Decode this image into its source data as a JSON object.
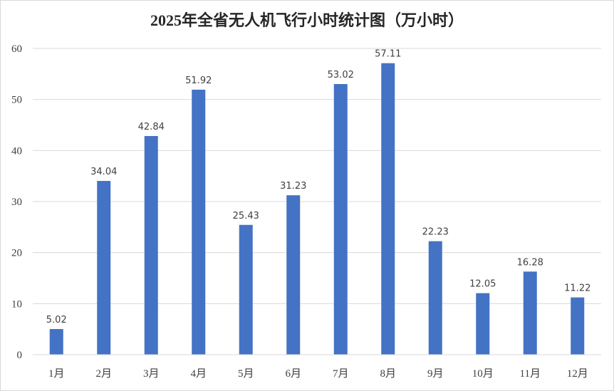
{
  "title": "2025年全省无人机飞行小时统计图（万小时）",
  "chart_data": {
    "type": "bar",
    "title": "2025年全省无人机飞行小时统计图（万小时）",
    "xlabel": "",
    "ylabel": "",
    "categories": [
      "1月",
      "2月",
      "3月",
      "4月",
      "5月",
      "6月",
      "7月",
      "8月",
      "9月",
      "10月",
      "11月",
      "12月"
    ],
    "values": [
      5.02,
      34.04,
      42.84,
      51.92,
      25.43,
      31.23,
      53.02,
      57.11,
      22.23,
      12.05,
      16.28,
      11.22
    ],
    "data_labels": [
      "5.02",
      "34.04",
      "42.84",
      "51.92",
      "25.43",
      "31.23",
      "53.02",
      "57.11",
      "22.23",
      "12.05",
      "16.28",
      "11.22"
    ],
    "ylim": [
      0,
      60
    ],
    "yticks": [
      "0",
      "10",
      "20",
      "30",
      "40",
      "50",
      "60"
    ],
    "grid": true,
    "legend": "none",
    "bar_color": "#4472C4",
    "grid_color": "#d9d9d9"
  }
}
